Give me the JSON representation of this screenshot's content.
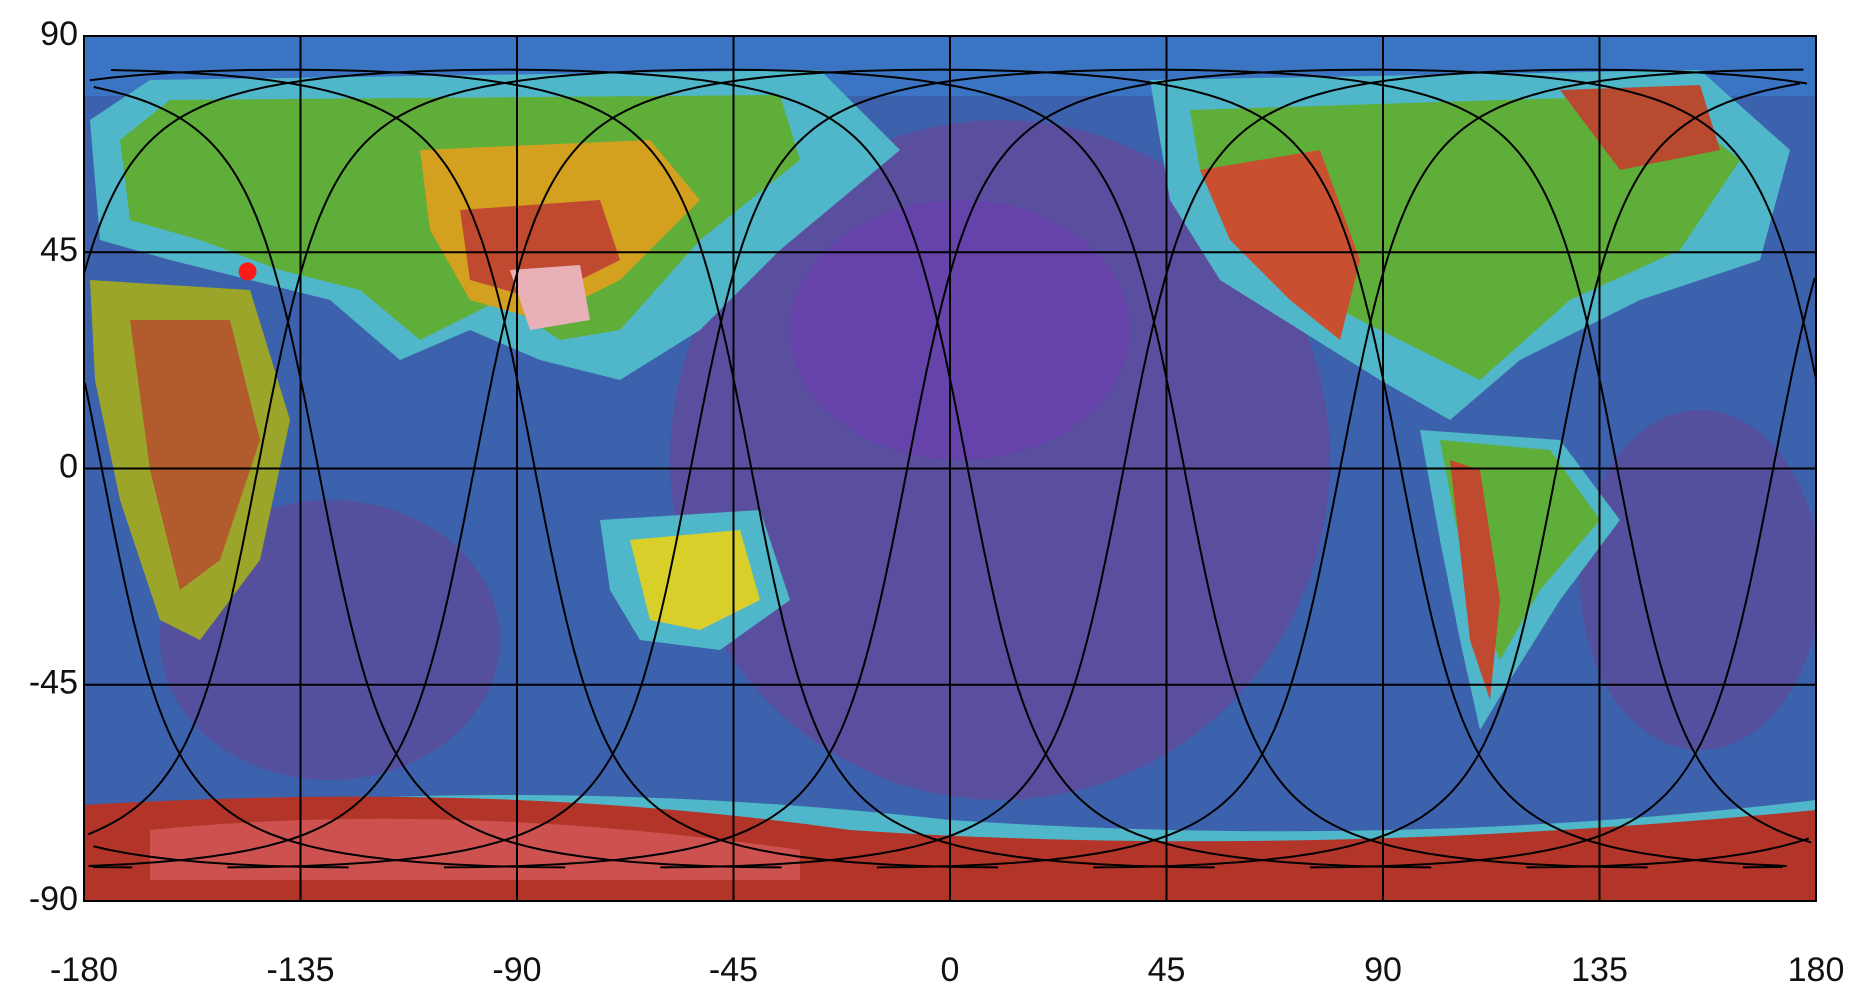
{
  "chart_data": {
    "type": "scatter",
    "x": [
      -146
    ],
    "values": [
      41
    ],
    "color": "#ff1a1a",
    "xlim": [
      -180,
      180
    ],
    "ylim": [
      -90,
      90
    ],
    "xticks": [
      -180,
      -135,
      -90,
      -45,
      0,
      45,
      90,
      135,
      180
    ],
    "yticks": [
      90,
      45,
      0,
      -45,
      -90
    ],
    "grid": true
  }
}
